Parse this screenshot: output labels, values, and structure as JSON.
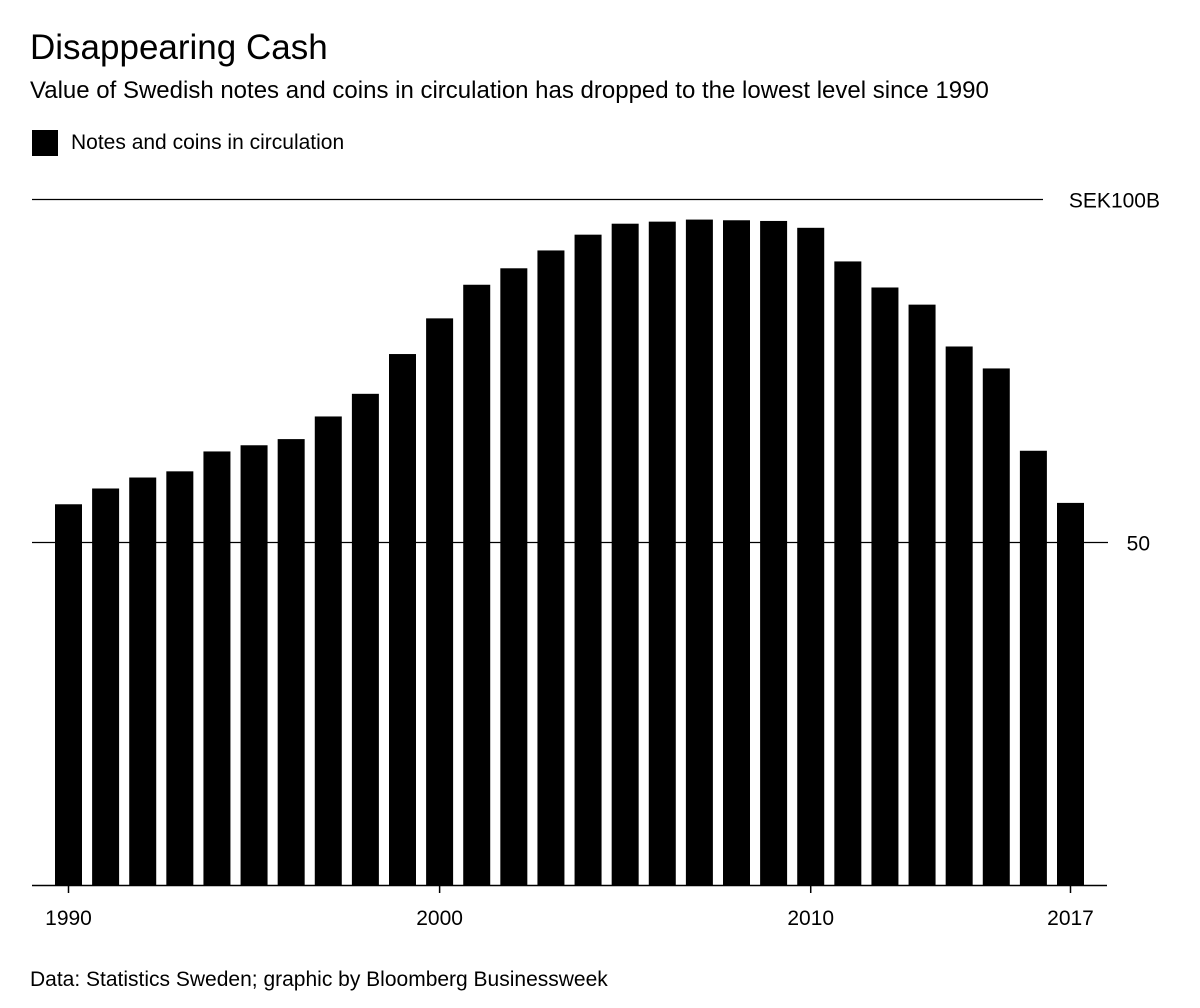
{
  "title": "Disappearing Cash",
  "subtitle": "Value of Swedish notes and coins in circulation has dropped to the lowest level since 1990",
  "legend": {
    "label": "Notes and coins in circulation",
    "color": "#000000"
  },
  "source": "Data: Statistics Sweden; graphic by Bloomberg Businessweek",
  "chart_data": {
    "type": "bar",
    "title": "Disappearing Cash",
    "subtitle": "Value of Swedish notes and coins in circulation has dropped to the lowest level since 1990",
    "xlabel": "",
    "ylabel": "",
    "unit": "SEK billions",
    "ylim": [
      0,
      100
    ],
    "grid": true,
    "legend_position": "top-left",
    "y_ticks": [
      {
        "value": 100,
        "label": "SEK100B"
      },
      {
        "value": 50,
        "label": "50"
      }
    ],
    "x_tick_labels": [
      "1990",
      "2000",
      "2010",
      "2017"
    ],
    "series": [
      {
        "name": "Notes and coins in circulation",
        "color": "#000000",
        "values": [
          55.5,
          57.8,
          59.4,
          60.3,
          63.2,
          64.1,
          65.0,
          68.3,
          71.6,
          77.4,
          82.6,
          87.5,
          89.9,
          92.5,
          94.8,
          96.4,
          96.7,
          97.0,
          96.9,
          96.8,
          95.8,
          90.9,
          87.1,
          84.6,
          78.5,
          75.3,
          63.3,
          55.7
        ]
      }
    ],
    "categories": [
      "1990",
      "1991",
      "1992",
      "1993",
      "1994",
      "1995",
      "1996",
      "1997",
      "1998",
      "1999",
      "2000",
      "2001",
      "2002",
      "2003",
      "2004",
      "2005",
      "2006",
      "2007",
      "2008",
      "2009",
      "2010",
      "2011",
      "2012",
      "2013",
      "2014",
      "2015",
      "2016",
      "2017"
    ]
  }
}
